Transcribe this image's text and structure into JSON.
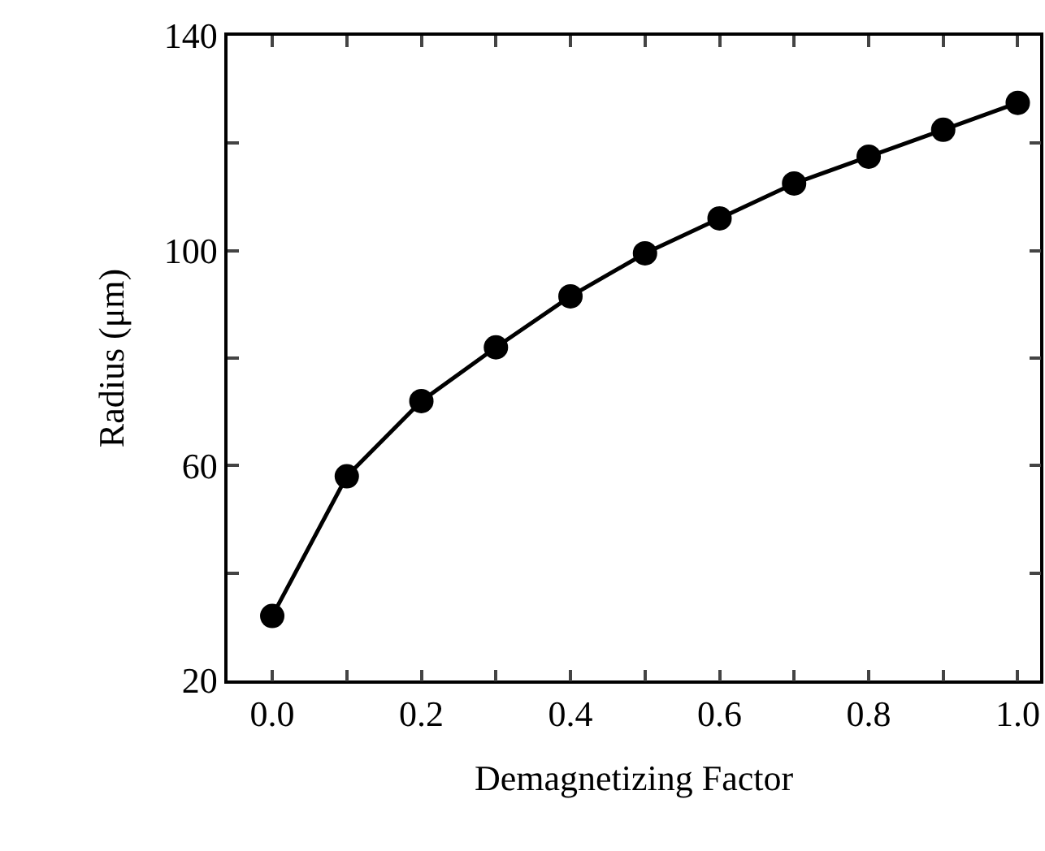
{
  "chart_data": {
    "type": "line",
    "xlabel": "Demagnetizing Factor",
    "ylabel": "Radius (μm)",
    "marker": "circle",
    "line_style": "solid",
    "x": [
      0.0,
      0.1,
      0.2,
      0.3,
      0.4,
      0.5,
      0.6,
      0.7,
      0.8,
      0.9,
      1.0
    ],
    "series": [
      {
        "color": "#000000",
        "values": [
          32,
          58,
          72,
          82,
          91.5,
          99.5,
          106,
          112.5,
          117.5,
          122.5,
          127.5
        ]
      }
    ],
    "xlim": [
      -0.06,
      1.03
    ],
    "ylim": [
      20,
      140
    ],
    "xticks": [
      {
        "value": 0,
        "label": "0.0"
      },
      {
        "value": 0.1,
        "label": null
      },
      {
        "value": 0.2,
        "label": "0.2"
      },
      {
        "value": 0.3,
        "label": null
      },
      {
        "value": 0.4,
        "label": "0.4"
      },
      {
        "value": 0.5,
        "label": null
      },
      {
        "value": 0.6,
        "label": "0.6"
      },
      {
        "value": 0.7,
        "label": null
      },
      {
        "value": 0.8,
        "label": "0.8"
      },
      {
        "value": 0.9,
        "label": null
      },
      {
        "value": 1,
        "label": "1.0"
      }
    ],
    "yticks": [
      20,
      {
        "value": 40,
        "label": null
      },
      60,
      {
        "value": 80,
        "label": null
      },
      100,
      {
        "value": 120,
        "label": null
      },
      140
    ]
  }
}
